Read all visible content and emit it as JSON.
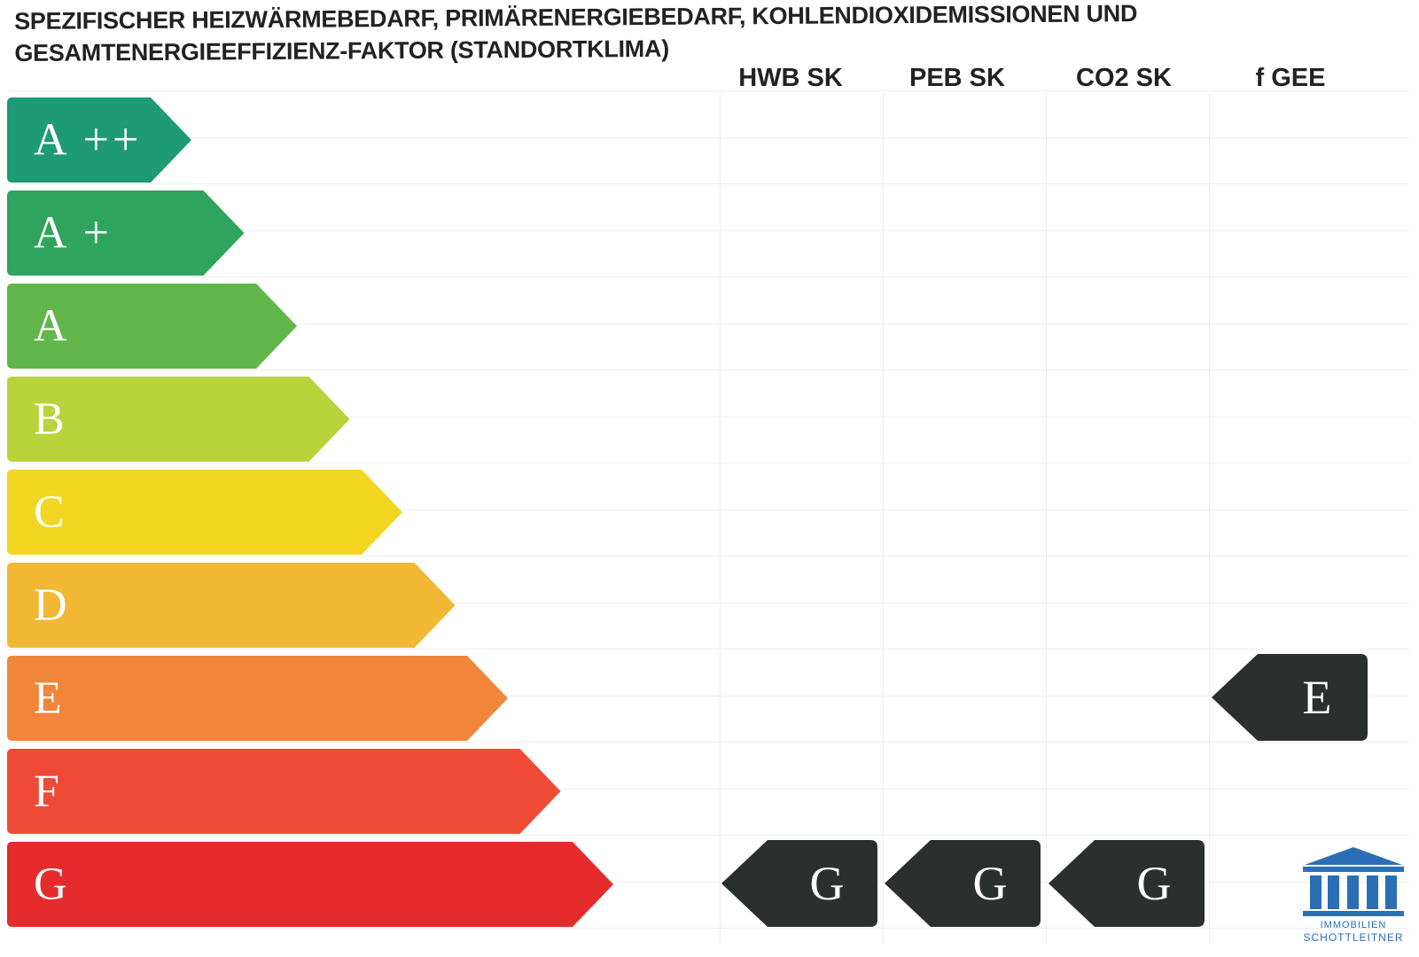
{
  "title": {
    "line1": "SPEZIFISCHER HEIZWÄRMEBEDARF, PRIMÄRENERGIEBEDARF, KOHLENDIOXIDEMISSIONEN UND",
    "line2": "GESAMTENERGIEEFFIZIENZ-FAKTOR (STANDORTKLIMA)"
  },
  "columns": [
    "HWB SK",
    "PEB SK",
    "CO2 SK",
    "f GEE"
  ],
  "scale": [
    {
      "label": "A ++",
      "color": "#1e9a74"
    },
    {
      "label": "A +",
      "color": "#2ea45e"
    },
    {
      "label": "A",
      "color": "#62b64a"
    },
    {
      "label": "B",
      "color": "#b8d43a"
    },
    {
      "label": "C",
      "color": "#f2d621"
    },
    {
      "label": "D",
      "color": "#f2b834"
    },
    {
      "label": "E",
      "color": "#f1863a"
    },
    {
      "label": "F",
      "color": "#ef4a36"
    },
    {
      "label": "G",
      "color": "#e52b2c"
    }
  ],
  "ratings": [
    {
      "column": "HWB SK",
      "class": "G"
    },
    {
      "column": "PEB SK",
      "class": "G"
    },
    {
      "column": "CO2 SK",
      "class": "G"
    },
    {
      "column": "f GEE",
      "class": "E"
    }
  ],
  "marker_color": "#2b2f2d",
  "logo": {
    "line1": "IMMOBILIEN",
    "line2": "SCHOTTLEITNER",
    "color": "#2a6fb6"
  }
}
